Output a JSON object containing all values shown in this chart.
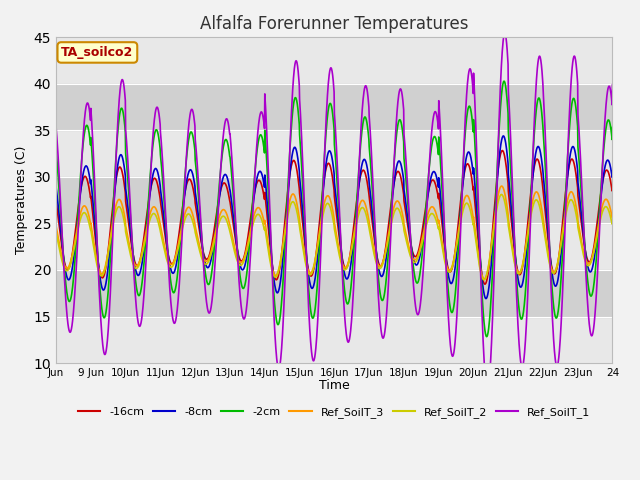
{
  "title": "Alfalfa Forerunner Temperatures",
  "xlabel": "Time",
  "ylabel": "Temperatures (C)",
  "annotation": "TA_soilco2",
  "ylim": [
    10,
    45
  ],
  "start_day": 8.0,
  "end_day": 24.0,
  "figsize": [
    6.4,
    4.8
  ],
  "dpi": 100,
  "background_color": "#f2f2f2",
  "plot_bg_color": "#e8e8e8",
  "gray_band_color": "#d8d8d8",
  "series_colors": {
    "red": "#cc0000",
    "blue": "#0000cc",
    "green": "#00bb00",
    "orange": "#ff9900",
    "yellow": "#cccc00",
    "purple": "#aa00cc"
  },
  "xtick_labels": [
    "Jun",
    "9 Jun",
    "10Jun",
    "11Jun",
    "12Jun",
    "13Jun",
    "14Jun",
    "15Jun",
    "16Jun",
    "17Jun",
    "18Jun",
    "19Jun",
    "20Jun",
    "21Jun",
    "22Jun",
    "23Jun",
    "24"
  ],
  "legend_labels": [
    "-16cm",
    "-8cm",
    "-2cm",
    "Ref_SoilT_3",
    "Ref_SoilT_2",
    "Ref_SoilT_1"
  ]
}
